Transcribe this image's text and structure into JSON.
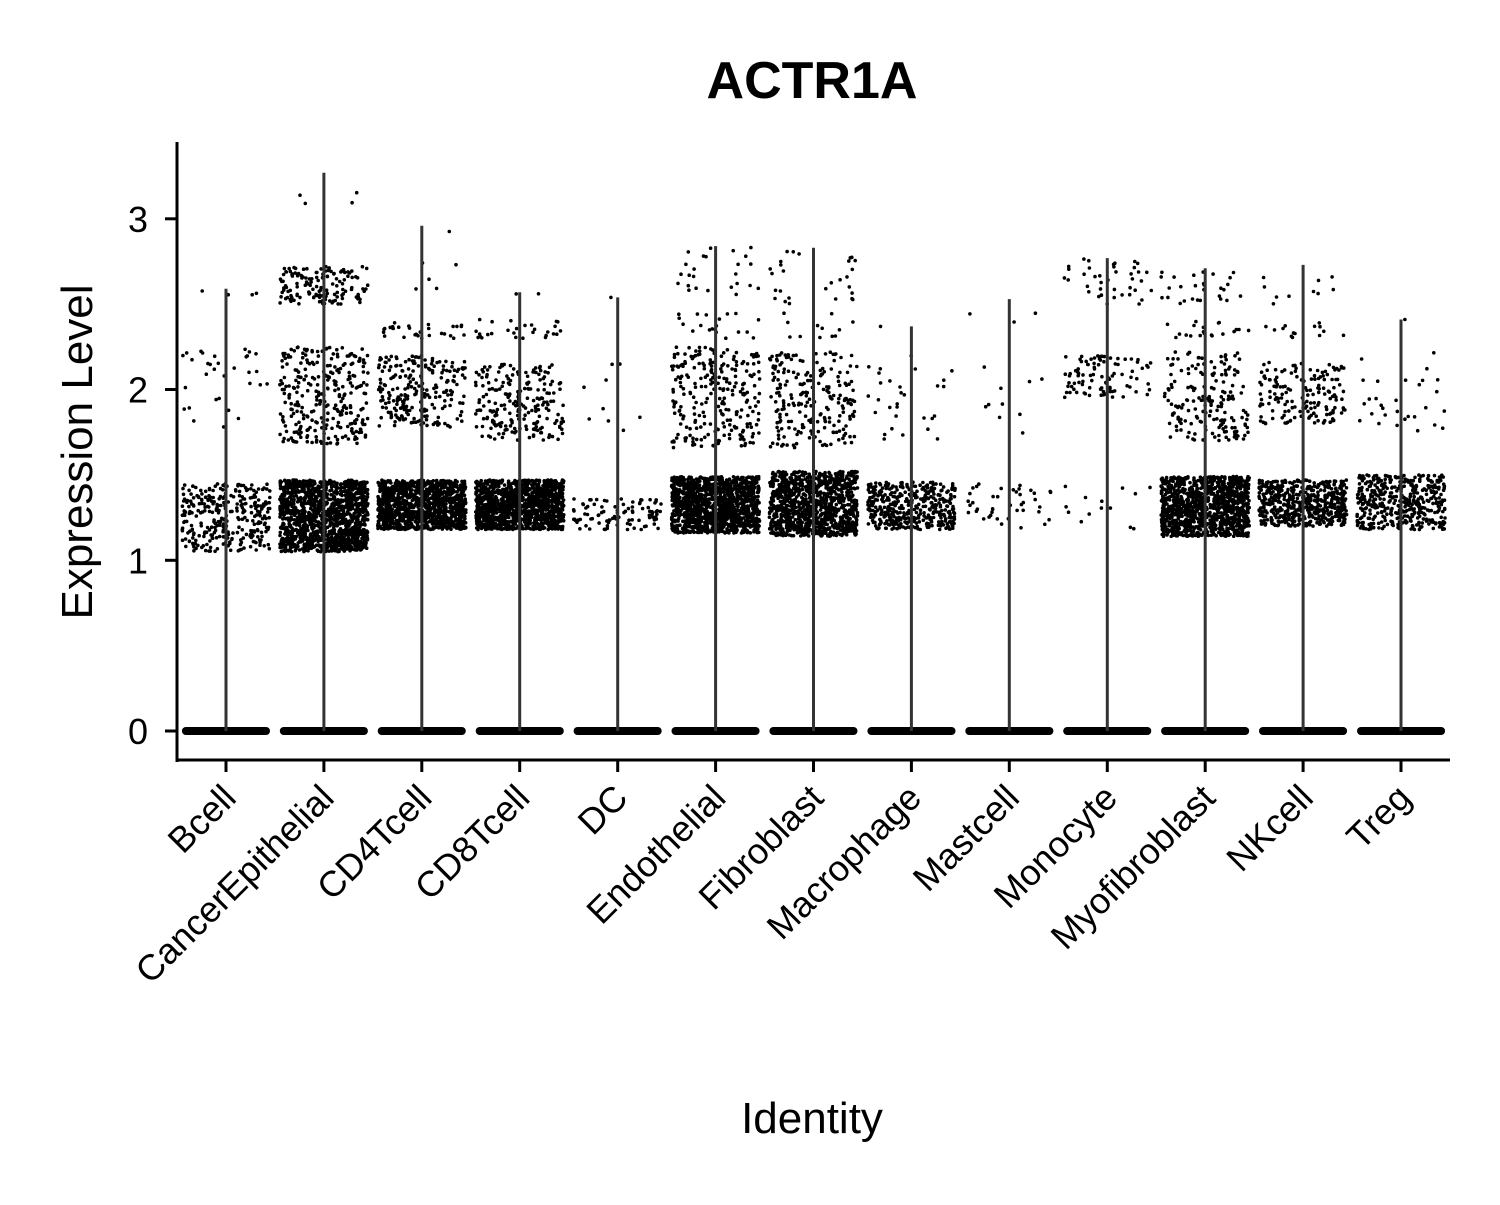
{
  "chart_data": {
    "type": "scatter",
    "subtype": "violin-jitter",
    "title": "ACTR1A",
    "xlabel": "Identity",
    "ylabel": "Expression Level",
    "ylim": [
      -0.17,
      3.45
    ],
    "yticks": [
      0,
      1,
      2,
      3
    ],
    "grid": false,
    "legend": "none",
    "point_color": "#000000",
    "line_color": "#333333",
    "categories": [
      "Bcell",
      "CancerEpithelial",
      "CD4Tcell",
      "CD8Tcell",
      "DC",
      "Endothelial",
      "Fibroblast",
      "Macrophage",
      "Mastcell",
      "Monocyte",
      "Myofibroblast",
      "NKcell",
      "Treg"
    ],
    "max_values": [
      2.59,
      3.27,
      2.96,
      2.57,
      2.54,
      2.84,
      2.83,
      2.37,
      2.53,
      2.77,
      2.71,
      2.73,
      2.41
    ],
    "clusters": [
      [
        [
          1.05,
          1.45,
          320
        ],
        [
          1.78,
          2.25,
          32
        ],
        [
          2.55,
          2.6,
          4
        ]
      ],
      [
        [
          1.05,
          1.47,
          1400
        ],
        [
          1.68,
          2.25,
          300
        ],
        [
          2.5,
          2.72,
          140
        ],
        [
          3.05,
          3.27,
          4
        ]
      ],
      [
        [
          1.18,
          1.47,
          1150
        ],
        [
          1.78,
          2.2,
          230
        ],
        [
          2.3,
          2.4,
          30
        ],
        [
          2.5,
          2.96,
          6
        ]
      ],
      [
        [
          1.18,
          1.47,
          1250
        ],
        [
          1.7,
          2.15,
          220
        ],
        [
          2.3,
          2.42,
          28
        ],
        [
          2.55,
          2.57,
          2
        ]
      ],
      [
        [
          1.18,
          1.36,
          95
        ],
        [
          1.6,
          2.15,
          9
        ],
        [
          2.54,
          2.54,
          1
        ]
      ],
      [
        [
          1.16,
          1.49,
          1300
        ],
        [
          1.66,
          2.25,
          250
        ],
        [
          2.3,
          2.45,
          20
        ],
        [
          2.55,
          2.84,
          25
        ]
      ],
      [
        [
          1.14,
          1.52,
          1150
        ],
        [
          1.66,
          2.22,
          220
        ],
        [
          2.3,
          2.45,
          12
        ],
        [
          2.5,
          2.83,
          28
        ]
      ],
      [
        [
          1.18,
          1.46,
          420
        ],
        [
          1.7,
          2.2,
          30
        ],
        [
          2.37,
          2.37,
          1
        ]
      ],
      [
        [
          1.18,
          1.45,
          42
        ],
        [
          1.72,
          2.15,
          10
        ],
        [
          2.38,
          2.53,
          3
        ]
      ],
      [
        [
          1.18,
          1.45,
          14
        ],
        [
          1.95,
          2.2,
          90
        ],
        [
          2.5,
          2.77,
          40
        ]
      ],
      [
        [
          1.14,
          1.49,
          1150
        ],
        [
          1.7,
          2.22,
          180
        ],
        [
          2.3,
          2.4,
          20
        ],
        [
          2.5,
          2.71,
          28
        ]
      ],
      [
        [
          1.2,
          1.47,
          560
        ],
        [
          1.8,
          2.16,
          160
        ],
        [
          2.3,
          2.4,
          14
        ],
        [
          2.5,
          2.73,
          10
        ]
      ],
      [
        [
          1.18,
          1.5,
          440
        ],
        [
          1.7,
          2.22,
          30
        ],
        [
          2.41,
          2.41,
          1
        ]
      ]
    ]
  }
}
